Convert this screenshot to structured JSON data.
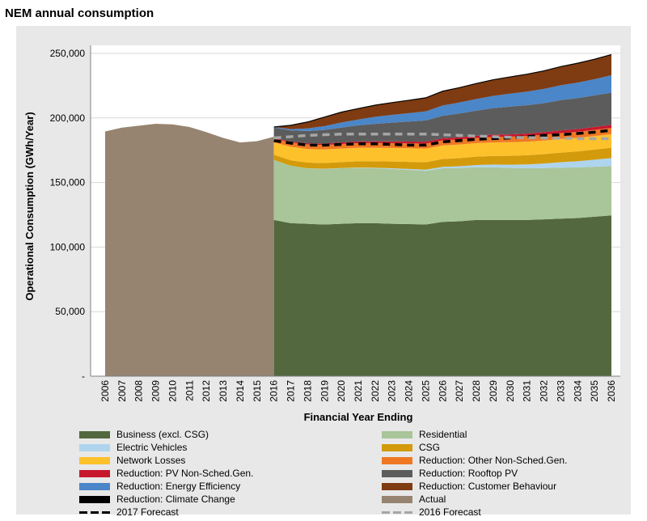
{
  "title": "NEM annual consumption",
  "chart_data": {
    "type": "area",
    "xlabel": "Financial Year Ending",
    "ylabel": "Operational Consumption (GWh/Year)",
    "ylim": [
      0,
      250000
    ],
    "yticks": [
      0,
      50000,
      100000,
      150000,
      200000,
      250000
    ],
    "ytick_labels": [
      "-",
      "50,000",
      "100,000",
      "150,000",
      "200,000",
      "250,000"
    ],
    "grid": "horizontal",
    "x_labels": [
      "2006",
      "2007",
      "2008",
      "2009",
      "2010",
      "2011",
      "2012",
      "2013",
      "2014",
      "2015",
      "2016",
      "2017",
      "2018",
      "2019",
      "2020",
      "2021",
      "2022",
      "2023",
      "2024",
      "2025",
      "2026",
      "2027",
      "2028",
      "2029",
      "2030",
      "2031",
      "2032",
      "2033",
      "2034",
      "2035",
      "2036"
    ],
    "actual": {
      "name": "Actual",
      "color": "#968470",
      "years": [
        "2006",
        "2007",
        "2008",
        "2009",
        "2010",
        "2011",
        "2012",
        "2013",
        "2014",
        "2015",
        "2016"
      ],
      "values": [
        189500,
        192500,
        194000,
        195500,
        195000,
        193000,
        189000,
        184500,
        181000,
        182000,
        185500
      ]
    },
    "forecast_years": [
      "2016",
      "2017",
      "2018",
      "2019",
      "2020",
      "2021",
      "2022",
      "2023",
      "2024",
      "2025",
      "2026",
      "2027",
      "2028",
      "2029",
      "2030",
      "2031",
      "2032",
      "2033",
      "2034",
      "2035",
      "2036"
    ],
    "stacked_series": [
      {
        "name": "Business (excl. CSG)",
        "color": "#53683f",
        "values": [
          121000,
          118500,
          118000,
          117500,
          118000,
          118500,
          118500,
          118000,
          117800,
          117500,
          119500,
          120000,
          121000,
          121000,
          121000,
          121000,
          121500,
          122000,
          122500,
          123500,
          124500
        ]
      },
      {
        "name": "Residential",
        "color": "#a9c59a",
        "values": [
          46500,
          44500,
          43000,
          43000,
          43000,
          42800,
          42500,
          42500,
          42000,
          41500,
          41500,
          41200,
          40800,
          40800,
          40300,
          40000,
          39700,
          39500,
          39200,
          38700,
          38200
        ]
      },
      {
        "name": "Electric Vehicles",
        "color": "#aed4ee",
        "values": [
          0,
          0,
          0,
          100,
          200,
          300,
          400,
          500,
          700,
          900,
          1100,
          1400,
          1700,
          2100,
          2500,
          3000,
          3500,
          4200,
          4800,
          5500,
          6200
        ]
      },
      {
        "name": "CSG",
        "color": "#d39b0b",
        "values": [
          4000,
          4200,
          4400,
          4500,
          4600,
          4800,
          5000,
          5300,
          5500,
          5800,
          6100,
          6300,
          6500,
          6700,
          6900,
          7100,
          7300,
          7500,
          7600,
          7800,
          8000
        ]
      },
      {
        "name": "Network Losses",
        "color": "#fdc12c",
        "values": [
          9500,
          10500,
          10500,
          10500,
          10500,
          10500,
          10500,
          10500,
          10500,
          10500,
          10500,
          10500,
          10500,
          10500,
          10500,
          10500,
          10500,
          10500,
          10500,
          10500,
          10500
        ]
      },
      {
        "name": "Reduction: Other Non-Sched.Gen.",
        "color": "#ef7824",
        "values": [
          3000,
          3300,
          3500,
          3500,
          3500,
          3600,
          3700,
          3700,
          3800,
          3900,
          4000,
          4000,
          4000,
          4200,
          4300,
          4400,
          4500,
          4600,
          4700,
          4800,
          4900
        ]
      },
      {
        "name": "Reduction: PV Non-Sched.Gen.",
        "color": "#c7172d",
        "values": [
          500,
          800,
          1000,
          1100,
          1200,
          1300,
          1300,
          1400,
          1400,
          1500,
          1500,
          1600,
          1700,
          1800,
          1800,
          1900,
          2000,
          2000,
          2100,
          2200,
          2300
        ]
      },
      {
        "name": "Reduction: Rooftop PV",
        "color": "#5c5c5c",
        "values": [
          8000,
          8500,
          9500,
          10500,
          11500,
          12500,
          13500,
          14500,
          15500,
          16500,
          17500,
          18500,
          19500,
          20500,
          21500,
          22000,
          22500,
          23500,
          24000,
          24500,
          25000
        ]
      },
      {
        "name": "Reduction: Energy Efficiency",
        "color": "#4a86c8",
        "values": [
          500,
          1000,
          2000,
          3000,
          4000,
          4500,
          5500,
          6000,
          6500,
          7000,
          8000,
          8500,
          9000,
          9500,
          10000,
          10500,
          11000,
          11500,
          12000,
          12500,
          13500
        ]
      },
      {
        "name": "Reduction: Customer Behaviour",
        "color": "#7f3b12",
        "values": [
          0,
          3000,
          5000,
          7000,
          8000,
          8500,
          9000,
          9500,
          10000,
          10500,
          11000,
          11500,
          12000,
          12500,
          13000,
          13500,
          14000,
          14500,
          15000,
          15500,
          16000
        ]
      }
    ],
    "line_series": [
      {
        "name": "2017 Forecast",
        "color": "#000000",
        "style": "dashed",
        "values": [
          182500,
          180500,
          179000,
          179000,
          179500,
          180000,
          180000,
          179500,
          179000,
          179000,
          181500,
          182500,
          183500,
          184000,
          184500,
          185500,
          186500,
          187000,
          188000,
          189000,
          190500
        ]
      },
      {
        "name": "2016 Forecast",
        "color": "#a6a6a6",
        "style": "dashed",
        "values": [
          184500,
          185500,
          186500,
          187000,
          187500,
          187500,
          187500,
          187500,
          187500,
          187500,
          187000,
          186500,
          186000,
          185500,
          185000,
          184800,
          184500,
          184300,
          184000,
          184000,
          184000
        ]
      }
    ],
    "legend": [
      {
        "name": "Business (excl. CSG)",
        "type": "area",
        "color": "#53683f"
      },
      {
        "name": "Residential",
        "type": "area",
        "color": "#a9c59a"
      },
      {
        "name": "Electric Vehicles",
        "type": "area",
        "color": "#aed4ee"
      },
      {
        "name": "CSG",
        "type": "area",
        "color": "#d39b0b"
      },
      {
        "name": "Network Losses",
        "type": "area",
        "color": "#fdc12c"
      },
      {
        "name": "Reduction: Other Non-Sched.Gen.",
        "type": "area",
        "color": "#ef7824"
      },
      {
        "name": "Reduction: PV Non-Sched.Gen.",
        "type": "area",
        "color": "#c7172d"
      },
      {
        "name": "Reduction: Rooftop PV",
        "type": "area",
        "color": "#5c5c5c"
      },
      {
        "name": "Reduction: Energy Efficiency",
        "type": "area",
        "color": "#4a86c8"
      },
      {
        "name": "Reduction: Customer Behaviour",
        "type": "area",
        "color": "#7f3b12"
      },
      {
        "name": "Reduction: Climate Change",
        "type": "area",
        "color": "#000000"
      },
      {
        "name": "Actual",
        "type": "area",
        "color": "#968470"
      },
      {
        "name": "2017 Forecast",
        "type": "dash",
        "color": "#000000"
      },
      {
        "name": "2016 Forecast",
        "type": "dash",
        "color": "#a6a6a6"
      }
    ]
  }
}
